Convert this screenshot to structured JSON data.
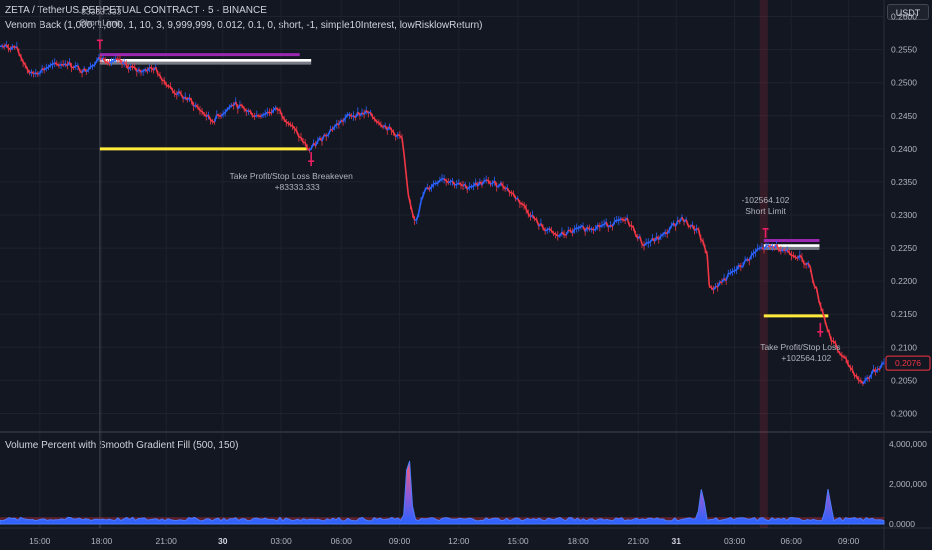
{
  "header": {
    "title": "ZETA / TetherUS PERPETUAL CONTRACT · 5 · BINANCE",
    "strategy": "Venom Back (1,000, 1,000, 1, 10, 3, 9,999,999, 0.012, 0.1, 0, short, -1, simple10Interest, lowRisklowReturn)",
    "currency": "USDT"
  },
  "price_axis": [
    "0.2600",
    "0.2550",
    "0.2500",
    "0.2450",
    "0.2400",
    "0.2350",
    "0.2300",
    "0.2250",
    "0.2200",
    "0.2150",
    "0.2100",
    "0.2050",
    "0.2000"
  ],
  "price_range": [
    0.1975,
    0.2625
  ],
  "current_price": "0.2076",
  "volume_panel": {
    "title": "Volume Percent with Smooth Gradient Fill (500, 150)",
    "axis": [
      "4,000,000",
      "2,000,000",
      "0.0000"
    ],
    "axis_values": [
      4000000,
      2000000,
      0
    ],
    "range": [
      0,
      4100000
    ],
    "spikes": [
      {
        "t": 0.462,
        "v": 4050000
      },
      {
        "t": 0.794,
        "v": 1950000
      },
      {
        "t": 0.937,
        "v": 1850000
      }
    ]
  },
  "time_axis": [
    {
      "t": 0.045,
      "label": "15:00",
      "bold": false
    },
    {
      "t": 0.115,
      "label": "18:00",
      "bold": false
    },
    {
      "t": 0.188,
      "label": "21:00",
      "bold": false
    },
    {
      "t": 0.252,
      "label": "30",
      "bold": true
    },
    {
      "t": 0.318,
      "label": "03:00",
      "bold": false
    },
    {
      "t": 0.386,
      "label": "06:00",
      "bold": false
    },
    {
      "t": 0.452,
      "label": "09:00",
      "bold": false
    },
    {
      "t": 0.519,
      "label": "12:00",
      "bold": false
    },
    {
      "t": 0.586,
      "label": "15:00",
      "bold": false
    },
    {
      "t": 0.654,
      "label": "18:00",
      "bold": false
    },
    {
      "t": 0.722,
      "label": "21:00",
      "bold": false
    },
    {
      "t": 0.765,
      "label": "31",
      "bold": true
    },
    {
      "t": 0.831,
      "label": "03:00",
      "bold": false
    },
    {
      "t": 0.895,
      "label": "06:00",
      "bold": false
    },
    {
      "t": 0.96,
      "label": "09:00",
      "bold": false
    }
  ],
  "chart_data": {
    "type": "line",
    "price_path": [
      [
        0.0,
        0.2555
      ],
      [
        0.018,
        0.2553
      ],
      [
        0.035,
        0.2512
      ],
      [
        0.055,
        0.2524
      ],
      [
        0.075,
        0.253
      ],
      [
        0.095,
        0.2518
      ],
      [
        0.113,
        0.2537
      ],
      [
        0.135,
        0.2531
      ],
      [
        0.155,
        0.2518
      ],
      [
        0.175,
        0.2522
      ],
      [
        0.195,
        0.2488
      ],
      [
        0.215,
        0.2473
      ],
      [
        0.24,
        0.2442
      ],
      [
        0.265,
        0.2468
      ],
      [
        0.29,
        0.245
      ],
      [
        0.315,
        0.246
      ],
      [
        0.338,
        0.242
      ],
      [
        0.35,
        0.2398
      ],
      [
        0.375,
        0.243
      ],
      [
        0.395,
        0.245
      ],
      [
        0.415,
        0.2455
      ],
      [
        0.44,
        0.243
      ],
      [
        0.455,
        0.2415
      ],
      [
        0.462,
        0.2325
      ],
      [
        0.47,
        0.229
      ],
      [
        0.48,
        0.2335
      ],
      [
        0.5,
        0.2357
      ],
      [
        0.525,
        0.2342
      ],
      [
        0.55,
        0.235
      ],
      [
        0.57,
        0.2345
      ],
      [
        0.59,
        0.2318
      ],
      [
        0.61,
        0.2285
      ],
      [
        0.63,
        0.2268
      ],
      [
        0.655,
        0.2278
      ],
      [
        0.685,
        0.2285
      ],
      [
        0.71,
        0.2292
      ],
      [
        0.728,
        0.2255
      ],
      [
        0.75,
        0.2268
      ],
      [
        0.77,
        0.2295
      ],
      [
        0.79,
        0.2275
      ],
      [
        0.8,
        0.224
      ],
      [
        0.803,
        0.2185
      ],
      [
        0.82,
        0.2203
      ],
      [
        0.84,
        0.2225
      ],
      [
        0.858,
        0.2248
      ],
      [
        0.878,
        0.2253
      ],
      [
        0.9,
        0.224
      ],
      [
        0.915,
        0.2225
      ],
      [
        0.925,
        0.218
      ],
      [
        0.938,
        0.212
      ],
      [
        0.948,
        0.2095
      ],
      [
        0.962,
        0.207
      ],
      [
        0.975,
        0.2045
      ],
      [
        0.99,
        0.2065
      ],
      [
        1.0,
        0.2076
      ]
    ],
    "trade_lines": [
      {
        "t1": 0.113,
        "t2": 0.339,
        "price": 0.25425,
        "color": "#9c27b0"
      },
      {
        "t1": 0.113,
        "t2": 0.352,
        "price": 0.25335,
        "color": "#ffffff"
      },
      {
        "t1": 0.113,
        "t2": 0.352,
        "price": 0.25295,
        "color": "#787b86"
      },
      {
        "t1": 0.113,
        "t2": 0.347,
        "price": 0.24,
        "color": "#ffeb3b"
      },
      {
        "t1": 0.864,
        "t2": 0.927,
        "price": 0.22615,
        "color": "#9c27b0"
      },
      {
        "t1": 0.864,
        "t2": 0.927,
        "price": 0.22535,
        "color": "#ffffff"
      },
      {
        "t1": 0.864,
        "t2": 0.927,
        "price": 0.22495,
        "color": "#787b86"
      },
      {
        "t1": 0.864,
        "t2": 0.937,
        "price": 0.21475,
        "color": "#ffeb3b"
      }
    ],
    "annotations": [
      {
        "t": 0.113,
        "price": 0.2555,
        "lines": [
          "-83333.333",
          "Short Limit"
        ],
        "kind": "entry"
      },
      {
        "t": 0.352,
        "price": 0.2395,
        "lines": [
          "Take Profit/Stop Loss Breakeven",
          "+83333.333"
        ],
        "kind": "exit"
      },
      {
        "t": 0.866,
        "price": 0.227,
        "lines": [
          "-102564.102",
          "Short Limit"
        ],
        "kind": "entry"
      },
      {
        "t": 0.928,
        "price": 0.2137,
        "lines": [
          "Take Profit/Stop Loss",
          "+102564.102"
        ],
        "kind": "exit"
      }
    ],
    "highlight_band_t": 0.864,
    "crosshair_t": 0.113
  },
  "colors": {
    "background": "#131722",
    "grid": "#1e222d",
    "up": "#2962ff",
    "down": "#f23645",
    "price_tag": "#f23645",
    "marker": "#e91e63"
  }
}
